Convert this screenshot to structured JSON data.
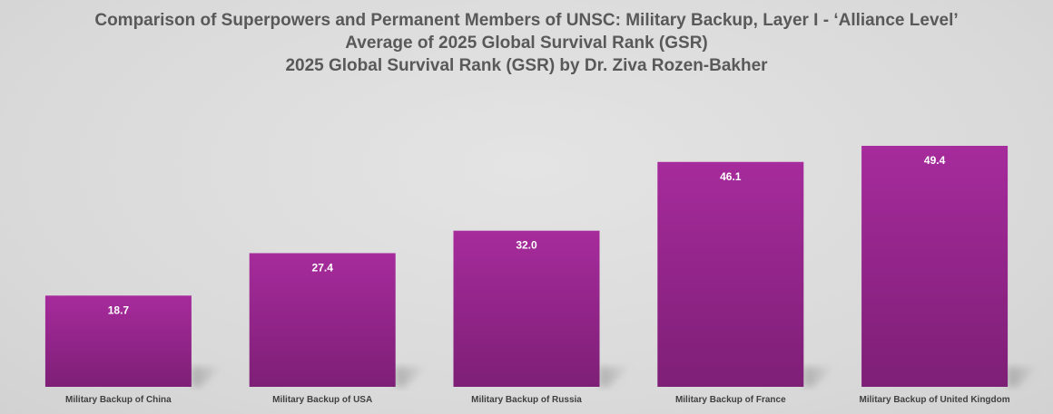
{
  "chart_data": {
    "type": "bar",
    "title_lines": [
      "Comparison of Superpowers and Permanent Members of UNSC: Military Backup, Layer I - ‘Alliance Level’",
      "Average of 2025 Global Survival Rank (GSR)",
      "2025 Global Survival Rank (GSR) by Dr. Ziva Rozen-Bakher"
    ],
    "categories": [
      "Military Backup of China",
      "Military Backup of USA",
      "Military Backup of Russia",
      "Military Backup of France",
      "Military Backup of United Kingdom"
    ],
    "values": [
      18.7,
      27.4,
      32.0,
      46.1,
      49.4
    ],
    "value_labels": [
      "18.7",
      "27.4",
      "32.0",
      "46.1",
      "49.4"
    ],
    "ylim": [
      0,
      50
    ],
    "grid": false,
    "legend": "none",
    "bar_color_top": "#a62b9c",
    "bar_color_bottom": "#7e1f76"
  }
}
